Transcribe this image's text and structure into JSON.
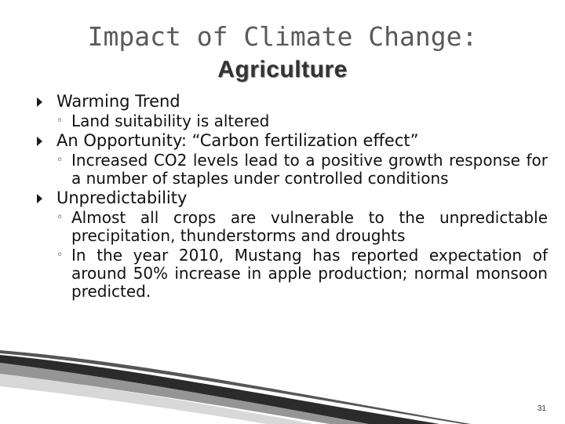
{
  "slide": {
    "title_line1": "Impact of Climate Change:",
    "title_line2": "Agriculture",
    "bullets": [
      {
        "text": "Warming Trend",
        "subs": [
          "Land suitability is altered"
        ]
      },
      {
        "text": "An Opportunity: “Carbon fertilization effect”",
        "subs": [
          "Increased CO2 levels lead to a positive growth response for a number of staples under controlled conditions"
        ]
      },
      {
        "text": "Unpredictability",
        "subs": [
          "Almost all crops are vulnerable to the unpredictable precipitation, thunderstorms and droughts",
          "In the year 2010, Mustang has reported expectation of around 50% increase in apple production; normal monsoon predicted."
        ]
      }
    ],
    "page_number": "31"
  },
  "colors": {
    "title": "#5a5a5a",
    "text": "#111111",
    "decor_dark": "#2b2b2b"
  }
}
